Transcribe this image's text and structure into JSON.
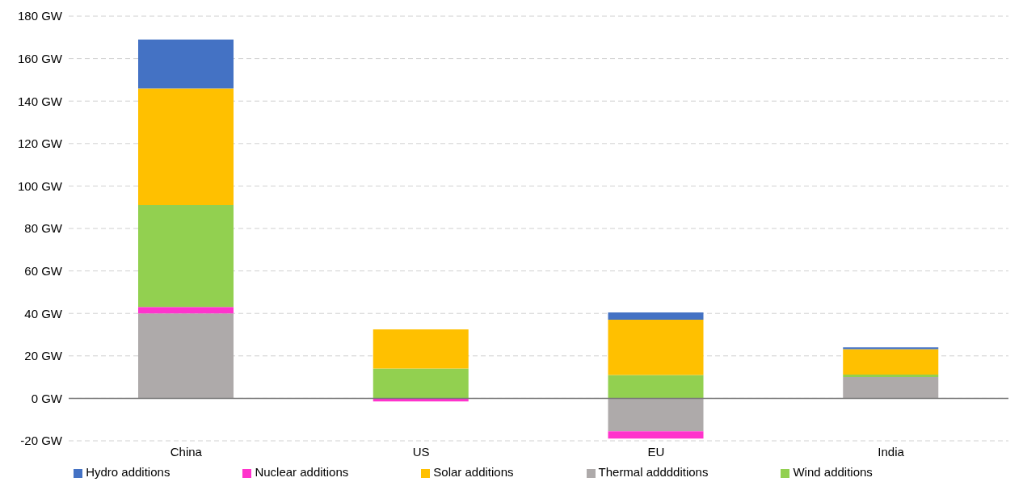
{
  "chart_data": {
    "type": "bar",
    "stacked": true,
    "categories": [
      "China",
      "US",
      "EU",
      "India"
    ],
    "series": [
      {
        "name": "Thermal adddditions",
        "color": "#aeaaaa",
        "values": [
          40,
          0,
          -15.5,
          10
        ]
      },
      {
        "name": "Nuclear additions",
        "color": "#ff33cc",
        "values": [
          3,
          -1.5,
          -3.5,
          0
        ]
      },
      {
        "name": "Wind additions",
        "color": "#92d050",
        "values": [
          48,
          14,
          11,
          1.2
        ]
      },
      {
        "name": "Solar additions",
        "color": "#ffc000",
        "values": [
          55,
          18.5,
          26,
          12
        ]
      },
      {
        "name": "Hydro additions",
        "color": "#4472c4",
        "values": [
          23,
          0,
          3.5,
          0.8
        ]
      }
    ],
    "ylim": [
      -20,
      180
    ],
    "yticks": [
      {
        "value": -20,
        "label": "-20 GW"
      },
      {
        "value": 0,
        "label": "0 GW"
      },
      {
        "value": 20,
        "label": "20 GW"
      },
      {
        "value": 40,
        "label": "40 GW"
      },
      {
        "value": 60,
        "label": "60 GW"
      },
      {
        "value": 80,
        "label": "80 GW"
      },
      {
        "value": 100,
        "label": "100 GW"
      },
      {
        "value": 120,
        "label": "120 GW"
      },
      {
        "value": 140,
        "label": "140 GW"
      },
      {
        "value": 160,
        "label": "160 GW"
      },
      {
        "value": 180,
        "label": "180 GW"
      }
    ],
    "grid": "y",
    "legend": "bottom"
  }
}
